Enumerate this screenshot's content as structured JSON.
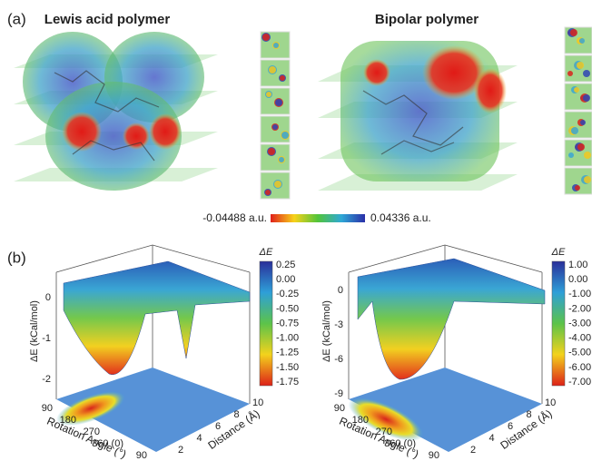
{
  "panel_a": {
    "label": "(a)",
    "titles": [
      "Lewis acid polymer",
      "Bipolar polymer"
    ],
    "colorbar": {
      "min_label": "-0.04488 a.u.",
      "max_label": "0.04336 a.u."
    }
  },
  "panel_b": {
    "label": "(b)",
    "plots": [
      {
        "colorbar_title": "ΔE",
        "colorbar_ticks": [
          "0.25",
          "0.00",
          "-0.25",
          "-0.50",
          "-0.75",
          "-1.00",
          "-1.25",
          "-1.50",
          "-1.75"
        ],
        "z_label": "ΔE (kCal/mol)",
        "z_ticks": [
          "0",
          "-1",
          "-2"
        ],
        "x_label": "Rotation Angle (°)",
        "x_ticks": [
          "90",
          "180",
          "270",
          "360 (0)",
          "90"
        ],
        "y_label": "Distance (Å)",
        "y_ticks": [
          "2",
          "4",
          "6",
          "8",
          "10"
        ]
      },
      {
        "colorbar_title": "ΔE",
        "colorbar_ticks": [
          "1.00",
          "0.00",
          "-1.00",
          "-2.00",
          "-3.00",
          "-4.00",
          "-5.00",
          "-6.00",
          "-7.00"
        ],
        "z_label": "ΔE (kCal/mol)",
        "z_ticks": [
          "0",
          "-3",
          "-6",
          "-9"
        ],
        "x_label": "Rotation Angle (°)",
        "x_ticks": [
          "90",
          "180",
          "270",
          "360 (0)",
          "90"
        ],
        "y_label": "Distance (Å)",
        "y_ticks": [
          "2",
          "4",
          "6",
          "8",
          "10"
        ]
      }
    ]
  }
}
